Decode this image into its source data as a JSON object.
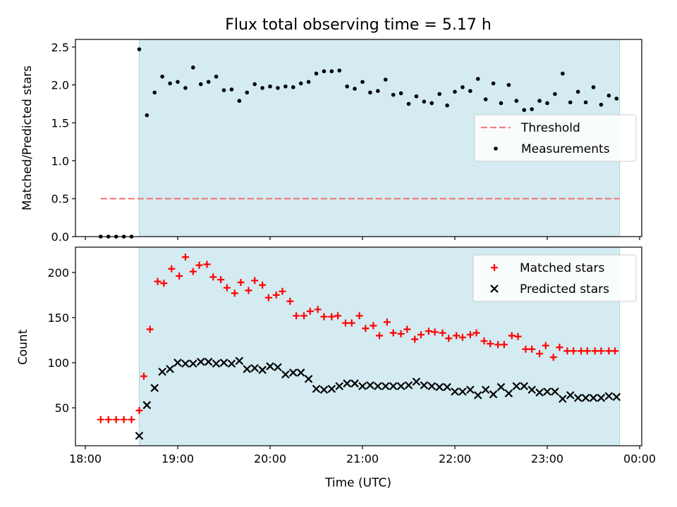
{
  "chart_data": [
    {
      "type": "scatter",
      "title": "Flux total observing time = 5.17 h",
      "xlabel": "",
      "ylabel": "Matched/Predicted stars",
      "xlim": [
        "18:00",
        "00:00"
      ],
      "ylim": [
        0,
        2.6
      ],
      "xticks": [
        "18:00",
        "19:00",
        "20:00",
        "21:00",
        "22:00",
        "23:00",
        "00:00"
      ],
      "yticks": [
        "0.0",
        "0.5",
        "1.0",
        "1.5",
        "2.0",
        "2.5"
      ],
      "shaded_span": [
        "18:35",
        "23:47"
      ],
      "legend": {
        "placement": "center-right",
        "entries": [
          "Threshold",
          "Measurements"
        ]
      },
      "series": [
        {
          "name": "Threshold",
          "kind": "dashed-line",
          "color": "#f08080",
          "x": [
            "18:10",
            "23:47"
          ],
          "y": [
            0.5,
            0.5
          ]
        },
        {
          "name": "Measurements",
          "kind": "points",
          "color": "#000000",
          "x": [
            "18:10",
            "18:15",
            "18:20",
            "18:25",
            "18:30",
            "18:35",
            "18:40",
            "18:45",
            "18:50",
            "18:55",
            "19:00",
            "19:05",
            "19:10",
            "19:15",
            "19:20",
            "19:25",
            "19:30",
            "19:35",
            "19:40",
            "19:45",
            "19:50",
            "19:55",
            "20:00",
            "20:05",
            "20:10",
            "20:15",
            "20:20",
            "20:25",
            "20:30",
            "20:35",
            "20:40",
            "20:45",
            "20:50",
            "20:55",
            "21:00",
            "21:05",
            "21:10",
            "21:15",
            "21:20",
            "21:25",
            "21:30",
            "21:35",
            "21:40",
            "21:45",
            "21:50",
            "21:55",
            "22:00",
            "22:05",
            "22:10",
            "22:15",
            "22:20",
            "22:25",
            "22:30",
            "22:35",
            "22:40",
            "22:45",
            "22:50",
            "22:55",
            "23:00",
            "23:05",
            "23:10",
            "23:15",
            "23:20",
            "23:25",
            "23:30",
            "23:35",
            "23:40",
            "23:45"
          ],
          "y": [
            0.0,
            0.0,
            0.0,
            0.0,
            0.0,
            2.47,
            1.6,
            1.9,
            2.11,
            2.02,
            2.04,
            1.96,
            2.23,
            2.01,
            2.04,
            2.11,
            1.93,
            1.94,
            1.79,
            1.9,
            2.01,
            1.96,
            1.98,
            1.96,
            1.98,
            1.97,
            2.02,
            2.04,
            2.15,
            2.18,
            2.18,
            2.19,
            1.98,
            1.95,
            2.04,
            1.9,
            1.92,
            2.07,
            1.87,
            1.89,
            1.75,
            1.85,
            1.78,
            1.76,
            1.88,
            1.73,
            1.91,
            1.97,
            1.92,
            2.08,
            1.81,
            2.02,
            1.76,
            2.0,
            1.79,
            1.67,
            1.68,
            1.79,
            1.76,
            1.88,
            2.15,
            1.77,
            1.91,
            1.77,
            1.97,
            1.74,
            1.86,
            1.82
          ]
        }
      ]
    },
    {
      "type": "scatter",
      "title": "",
      "xlabel": "Time (UTC)",
      "ylabel": "Count",
      "xlim": [
        "18:00",
        "00:00"
      ],
      "ylim": [
        8,
        228
      ],
      "xticks": [
        "18:00",
        "19:00",
        "20:00",
        "21:00",
        "22:00",
        "23:00",
        "00:00"
      ],
      "yticks": [
        "50",
        "100",
        "150",
        "200"
      ],
      "shaded_span": [
        "18:35",
        "23:47"
      ],
      "legend": {
        "placement": "top-right",
        "entries": [
          "Matched stars",
          "Predicted stars"
        ]
      },
      "series": [
        {
          "name": "Matched stars",
          "kind": "plus",
          "color": "#ff0000",
          "x": [
            "18:10",
            "18:15",
            "18:20",
            "18:25",
            "18:30",
            "18:35",
            "18:38",
            "18:42",
            "18:47",
            "18:51",
            "18:56",
            "19:01",
            "19:05",
            "19:10",
            "19:14",
            "19:19",
            "19:23",
            "19:28",
            "19:32",
            "19:37",
            "19:41",
            "19:46",
            "19:50",
            "19:55",
            "19:59",
            "20:04",
            "20:08",
            "20:13",
            "20:17",
            "20:22",
            "20:26",
            "20:31",
            "20:35",
            "20:40",
            "20:44",
            "20:49",
            "20:53",
            "20:58",
            "21:02",
            "21:07",
            "21:11",
            "21:16",
            "21:20",
            "21:25",
            "21:29",
            "21:34",
            "21:38",
            "21:43",
            "21:47",
            "21:52",
            "21:56",
            "22:01",
            "22:05",
            "22:10",
            "22:14",
            "22:19",
            "22:23",
            "22:28",
            "22:32",
            "22:37",
            "22:41",
            "22:46",
            "22:50",
            "22:55",
            "22:59",
            "23:04",
            "23:08",
            "23:13",
            "23:17",
            "23:22",
            "23:26",
            "23:31",
            "23:35",
            "23:40",
            "23:44"
          ],
          "y": [
            37,
            37,
            37,
            37,
            37,
            47,
            85,
            137,
            190,
            188,
            204,
            196,
            217,
            201,
            208,
            209,
            195,
            192,
            183,
            177,
            189,
            180,
            191,
            186,
            172,
            175,
            179,
            168,
            152,
            152,
            157,
            159,
            151,
            151,
            152,
            144,
            144,
            152,
            138,
            141,
            130,
            145,
            133,
            132,
            137,
            126,
            131,
            135,
            134,
            133,
            127,
            130,
            128,
            131,
            133,
            124,
            121,
            120,
            120,
            130,
            129,
            115,
            115,
            110,
            119,
            106,
            117,
            113,
            113,
            113,
            113,
            113,
            113,
            113,
            113
          ]
        },
        {
          "name": "Predicted stars",
          "kind": "cross",
          "color": "#000000",
          "x": [
            "18:35",
            "18:40",
            "18:45",
            "18:50",
            "18:55",
            "19:00",
            "19:05",
            "19:10",
            "19:15",
            "19:20",
            "19:25",
            "19:30",
            "19:35",
            "19:40",
            "19:45",
            "19:50",
            "19:55",
            "20:00",
            "20:05",
            "20:10",
            "20:15",
            "20:20",
            "20:25",
            "20:30",
            "20:35",
            "20:40",
            "20:45",
            "20:50",
            "20:55",
            "21:00",
            "21:05",
            "21:10",
            "21:15",
            "21:20",
            "21:25",
            "21:30",
            "21:35",
            "21:40",
            "21:45",
            "21:50",
            "21:55",
            "22:00",
            "22:05",
            "22:10",
            "22:15",
            "22:20",
            "22:25",
            "22:30",
            "22:35",
            "22:40",
            "22:45",
            "22:50",
            "22:55",
            "23:00",
            "23:05",
            "23:10",
            "23:15",
            "23:20",
            "23:25",
            "23:30",
            "23:35",
            "23:40",
            "23:45"
          ],
          "y": [
            19,
            53,
            72,
            90,
            93,
            100,
            99,
            99,
            101,
            101,
            99,
            100,
            99,
            102,
            93,
            94,
            92,
            96,
            95,
            87,
            89,
            89,
            82,
            71,
            70,
            71,
            74,
            77,
            77,
            74,
            75,
            74,
            74,
            74,
            74,
            75,
            79,
            75,
            74,
            73,
            73,
            68,
            68,
            70,
            64,
            70,
            65,
            73,
            66,
            74,
            74,
            70,
            67,
            68,
            68,
            60,
            64,
            61,
            61,
            61,
            61,
            63,
            62
          ]
        }
      ]
    }
  ],
  "colors": {
    "span": "#d3ebf1",
    "threshold": "#f08080",
    "matched": "#ff0000",
    "predicted": "#000000"
  }
}
